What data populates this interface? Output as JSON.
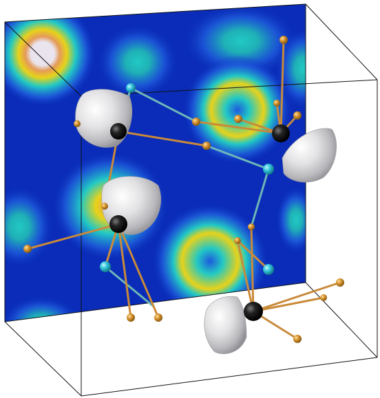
{
  "figure": {
    "kind": "3d-crystal-structure-with-density-slice",
    "caption": ""
  },
  "colors": {
    "background": "#ffffff",
    "cell_edge": "#111111",
    "plane_base": "#0a2cb8",
    "density_low": "#1e5bdc",
    "density_mid": "#22c9c4",
    "density_high": "#e8d21a",
    "density_peak": "#e49a5a",
    "density_core": "#e9e4ee",
    "atom_black": "#0c0c0c",
    "atom_cyan": "#33c7dd",
    "atom_orange": "#d9962e",
    "bond_orange": "#c98a3a",
    "bond_teal": "#6fb7b8",
    "isosurface": "#d9d9db"
  },
  "legend": []
}
